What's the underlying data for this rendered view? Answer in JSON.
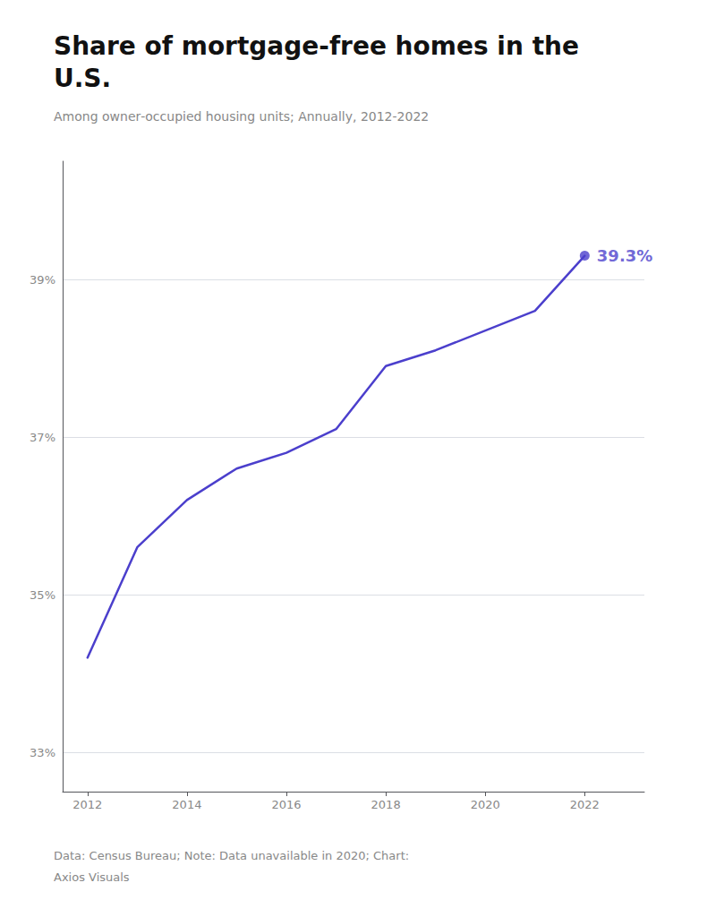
{
  "chart_data": {
    "type": "line",
    "title": "Share of mortgage‑free homes in the\nU.S.",
    "subtitle": "Among owner‑occupied housing units; Annually, 2012‑2022",
    "footnote": "Data: Census Bureau; Note: Data unavailable in 2020; Chart:\nAxios Visuals",
    "x": [
      2012,
      2013,
      2014,
      2015,
      2016,
      2017,
      2018,
      2019,
      2021,
      2022
    ],
    "values": [
      34.2,
      35.6,
      36.2,
      36.6,
      36.8,
      37.1,
      37.9,
      38.1,
      38.6,
      39.3
    ],
    "color": "#4b3fcc",
    "xlim": [
      2011.5,
      2023.2
    ],
    "xticks": [
      2012,
      2014,
      2016,
      2018,
      2020,
      2022
    ],
    "ylim": [
      32.5,
      40.5
    ],
    "yticks": [
      {
        "value": 33,
        "label": "33%"
      },
      {
        "value": 35,
        "label": "35%"
      },
      {
        "value": 37,
        "label": "37%"
      },
      {
        "value": 39,
        "label": "39%"
      }
    ],
    "grid": true,
    "annotations": [
      {
        "x": 2022,
        "y": 39.3,
        "text": "39.3%"
      }
    ]
  }
}
